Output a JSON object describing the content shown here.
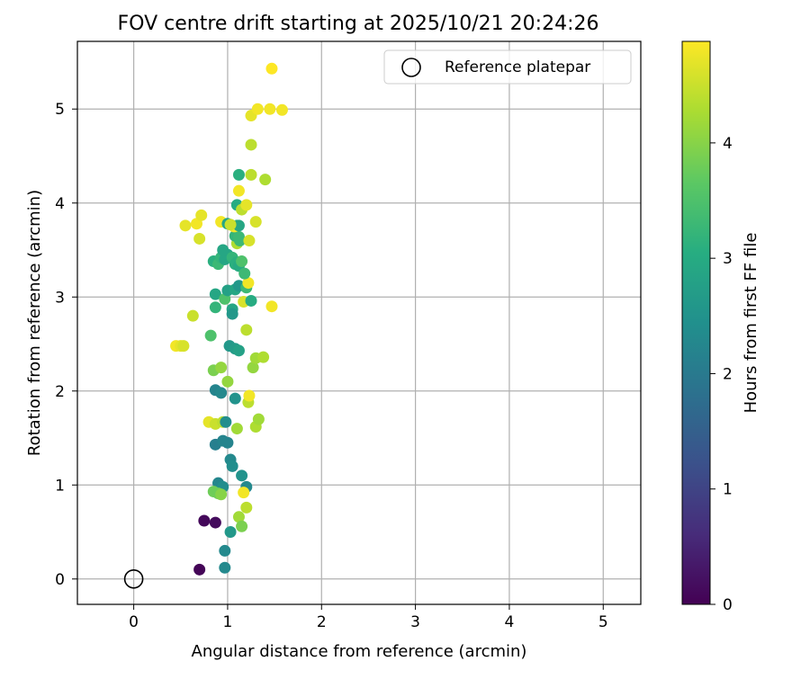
{
  "chart_data": {
    "type": "scatter",
    "title": "FOV centre drift starting at 2025/10/21 20:24:26",
    "xlabel": "Angular distance from reference (arcmin)",
    "ylabel": "Rotation from reference (arcmin)",
    "xlim": [
      -0.6,
      5.4
    ],
    "ylim": [
      -0.27,
      5.72
    ],
    "xticks": [
      0,
      1,
      2,
      3,
      4,
      5
    ],
    "yticks": [
      0,
      1,
      2,
      3,
      4,
      5
    ],
    "grid": true,
    "legend": {
      "placement": "upper right",
      "entries": [
        {
          "label": "Reference platepar",
          "marker": "open-circle"
        }
      ]
    },
    "reference_point": {
      "x": 0,
      "y": 0
    },
    "colorbar": {
      "label": "Hours from first FF file",
      "colormap": "viridis",
      "range": [
        0,
        4.88
      ],
      "ticks": [
        0,
        1,
        2,
        3,
        4
      ]
    },
    "points": [
      [
        0.7,
        0.1,
        0.05
      ],
      [
        0.75,
        0.62,
        0.1
      ],
      [
        0.87,
        0.6,
        0.15
      ],
      [
        0.97,
        0.12,
        2.3
      ],
      [
        0.97,
        0.3,
        2.3
      ],
      [
        1.03,
        0.5,
        2.6
      ],
      [
        0.9,
        1.02,
        2.25
      ],
      [
        0.95,
        0.98,
        2.4
      ],
      [
        0.87,
        1.43,
        2.1
      ],
      [
        0.95,
        1.47,
        2.2
      ],
      [
        1.0,
        1.45,
        2.2
      ],
      [
        1.03,
        1.27,
        2.3
      ],
      [
        1.05,
        1.2,
        2.4
      ],
      [
        1.15,
        1.1,
        2.5
      ],
      [
        1.2,
        0.98,
        2.3
      ],
      [
        0.85,
        0.93,
        3.8
      ],
      [
        0.9,
        0.91,
        3.8
      ],
      [
        0.93,
        0.9,
        4.0
      ],
      [
        1.12,
        0.66,
        4.2
      ],
      [
        1.15,
        0.56,
        3.9
      ],
      [
        1.2,
        0.76,
        4.4
      ],
      [
        1.17,
        0.92,
        4.8
      ],
      [
        0.8,
        1.67,
        4.7
      ],
      [
        0.87,
        1.65,
        4.5
      ],
      [
        0.95,
        1.67,
        4.4
      ],
      [
        0.98,
        1.67,
        2.4
      ],
      [
        1.1,
        1.6,
        4.2
      ],
      [
        1.22,
        1.88,
        4.4
      ],
      [
        1.23,
        1.95,
        4.8
      ],
      [
        1.3,
        1.62,
        4.3
      ],
      [
        1.33,
        1.7,
        4.2
      ],
      [
        0.87,
        2.01,
        2.2
      ],
      [
        0.93,
        1.98,
        2.3
      ],
      [
        1.08,
        1.92,
        2.5
      ],
      [
        0.85,
        2.22,
        3.9
      ],
      [
        0.93,
        2.25,
        4.1
      ],
      [
        1.0,
        2.1,
        4.1
      ],
      [
        1.27,
        2.25,
        4.1
      ],
      [
        1.3,
        2.35,
        4.2
      ],
      [
        1.38,
        2.36,
        4.3
      ],
      [
        1.02,
        2.48,
        2.6
      ],
      [
        1.08,
        2.45,
        2.7
      ],
      [
        1.12,
        2.43,
        2.8
      ],
      [
        0.82,
        2.59,
        3.5
      ],
      [
        1.2,
        2.65,
        4.4
      ],
      [
        0.45,
        2.48,
        4.8
      ],
      [
        0.5,
        2.48,
        4.7
      ],
      [
        0.53,
        2.48,
        4.6
      ],
      [
        0.63,
        2.8,
        4.5
      ],
      [
        0.87,
        2.89,
        3.2
      ],
      [
        1.05,
        2.87,
        2.9
      ],
      [
        1.05,
        2.82,
        2.6
      ],
      [
        0.87,
        3.03,
        2.9
      ],
      [
        0.97,
        2.98,
        3.5
      ],
      [
        1.0,
        3.07,
        2.8
      ],
      [
        1.08,
        3.08,
        2.9
      ],
      [
        1.12,
        3.12,
        2.6
      ],
      [
        1.2,
        3.1,
        3.3
      ],
      [
        1.22,
        3.15,
        4.8
      ],
      [
        1.17,
        2.95,
        4.6
      ],
      [
        1.25,
        2.96,
        3.0
      ],
      [
        1.47,
        2.9,
        4.8
      ],
      [
        0.85,
        3.38,
        3.1
      ],
      [
        0.9,
        3.35,
        3.3
      ],
      [
        0.93,
        3.42,
        3.2
      ],
      [
        0.97,
        3.4,
        2.9
      ],
      [
        1.0,
        3.45,
        2.9
      ],
      [
        1.05,
        3.42,
        3.2
      ],
      [
        1.08,
        3.35,
        3.1
      ],
      [
        1.1,
        3.37,
        3.1
      ],
      [
        1.12,
        3.33,
        3.0
      ],
      [
        1.15,
        3.38,
        3.5
      ],
      [
        1.18,
        3.25,
        3.3
      ],
      [
        0.95,
        3.5,
        2.9
      ],
      [
        1.1,
        3.57,
        4.3
      ],
      [
        1.08,
        3.65,
        3.2
      ],
      [
        1.12,
        3.64,
        3.3
      ],
      [
        1.13,
        3.6,
        3.3
      ],
      [
        1.1,
        3.76,
        3.1
      ],
      [
        1.07,
        3.75,
        4.8
      ],
      [
        1.12,
        3.76,
        2.9
      ],
      [
        1.23,
        3.6,
        4.6
      ],
      [
        0.55,
        3.76,
        4.7
      ],
      [
        0.67,
        3.78,
        4.8
      ],
      [
        0.7,
        3.62,
        4.6
      ],
      [
        0.72,
        3.87,
        4.7
      ],
      [
        0.93,
        3.8,
        4.8
      ],
      [
        1.0,
        3.78,
        2.9
      ],
      [
        1.03,
        3.77,
        4.5
      ],
      [
        1.3,
        3.8,
        4.6
      ],
      [
        1.1,
        3.98,
        3.0
      ],
      [
        1.15,
        3.93,
        4.4
      ],
      [
        1.2,
        3.98,
        4.7
      ],
      [
        1.12,
        4.13,
        4.8
      ],
      [
        1.12,
        4.3,
        3.1
      ],
      [
        1.25,
        4.3,
        4.4
      ],
      [
        1.4,
        4.25,
        4.3
      ],
      [
        1.25,
        4.62,
        4.4
      ],
      [
        1.25,
        4.93,
        4.7
      ],
      [
        1.32,
        5.0,
        4.8
      ],
      [
        1.45,
        5.0,
        4.8
      ],
      [
        1.58,
        4.99,
        4.8
      ],
      [
        1.47,
        5.43,
        4.9
      ]
    ]
  }
}
